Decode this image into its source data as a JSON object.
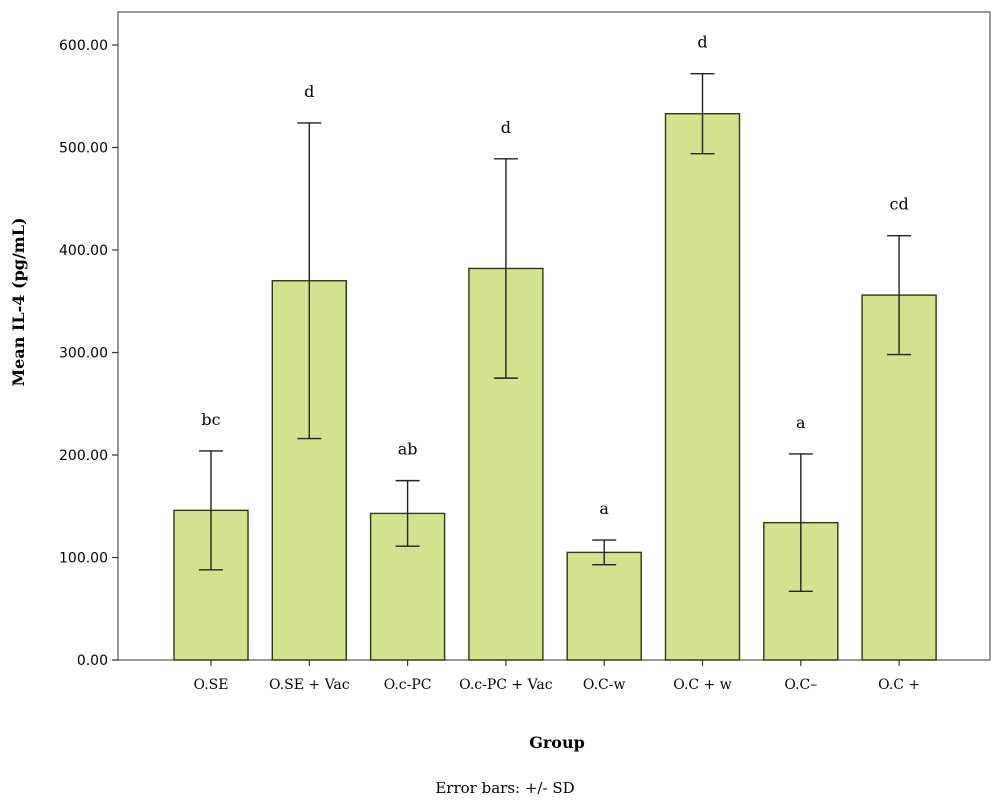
{
  "chart_data": {
    "type": "bar",
    "categories": [
      "O.SE",
      "O.SE + Vac",
      "O.c-PC",
      "O.c-PC + Vac",
      "O.C-w",
      "O.C + w",
      "O.C–",
      "O.C +"
    ],
    "values": [
      146,
      370,
      143,
      382,
      105,
      533,
      134,
      356
    ],
    "error_sd": [
      58,
      154,
      32,
      107,
      12,
      39,
      67,
      58
    ],
    "significance_letters": [
      "bc",
      "d",
      "ab",
      "d",
      "a",
      "d",
      "a",
      "cd"
    ],
    "xlabel": "Group",
    "ylabel": "Mean IL-4 (pg/mL)",
    "ylim": [
      0,
      600
    ],
    "yticks": [
      0,
      100,
      200,
      300,
      400,
      500,
      600
    ],
    "ytick_labels": [
      "0.00",
      "100.00",
      "200.00",
      "300.00",
      "400.00",
      "500.00",
      "600.00"
    ],
    "footnote": "Error bars: +/- SD",
    "bar_color": "#d2e28e",
    "bar_stroke": "#2b3a10",
    "grid": false,
    "legend": false
  }
}
